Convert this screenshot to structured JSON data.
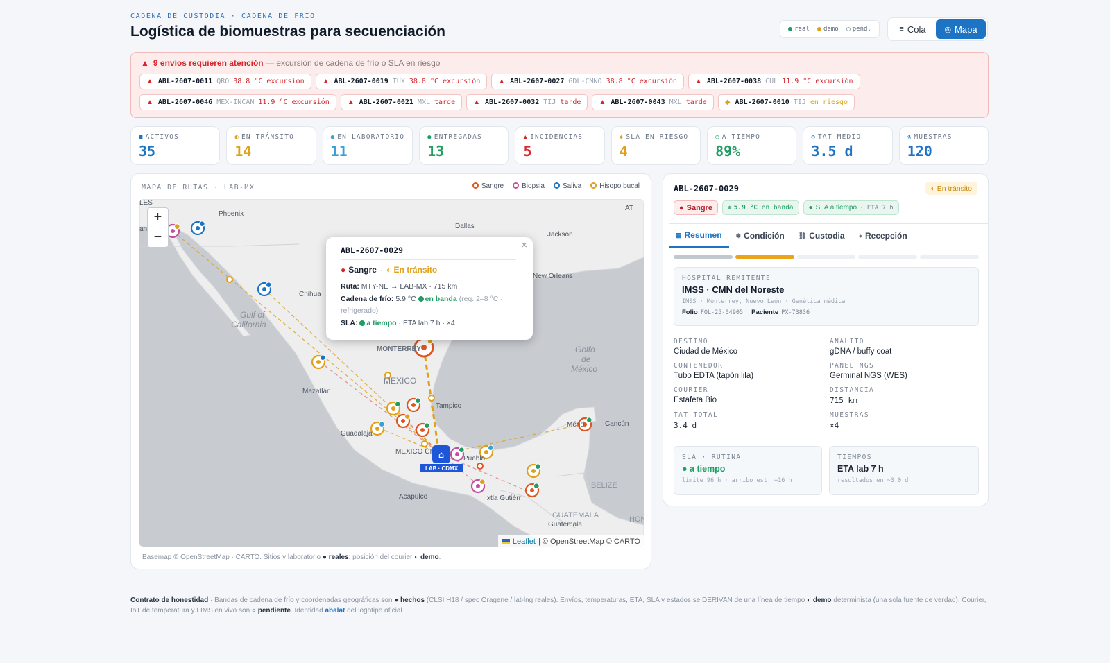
{
  "header": {
    "kicker": "CADENA DE CUSTODIA · CADENA DE FRÍO",
    "title": "Logística de biomuestras para secuenciación"
  },
  "legend_pill": {
    "real": "real",
    "demo": "demo",
    "pending": "pend."
  },
  "view_toggle": {
    "cola": "Cola",
    "mapa": "Mapa",
    "active": "Mapa"
  },
  "alerts": {
    "count_text": "9 envíos requieren atención",
    "desc": "— excursión de cadena de frío o SLA en riesgo",
    "chips": [
      {
        "id": "ABL-2607-0011",
        "route": "QRO",
        "status": "38.8 °C excursión",
        "level": "alert"
      },
      {
        "id": "ABL-2607-0019",
        "route": "TUX",
        "status": "38.8 °C excursión",
        "level": "alert"
      },
      {
        "id": "ABL-2607-0027",
        "route": "GDL-CMNO",
        "status": "38.8 °C excursión",
        "level": "alert"
      },
      {
        "id": "ABL-2607-0038",
        "route": "CUL",
        "status": "11.9 °C excursión",
        "level": "alert"
      },
      {
        "id": "ABL-2607-0046",
        "route": "MEX-INCAN",
        "status": "11.9 °C excursión",
        "level": "alert"
      },
      {
        "id": "ABL-2607-0021",
        "route": "MXL",
        "status": "tarde",
        "level": "alert"
      },
      {
        "id": "ABL-2607-0032",
        "route": "TIJ",
        "status": "tarde",
        "level": "alert"
      },
      {
        "id": "ABL-2607-0043",
        "route": "MXL",
        "status": "tarde",
        "level": "alert"
      },
      {
        "id": "ABL-2607-0010",
        "route": "TIJ",
        "status": "en riesgo",
        "level": "risk"
      }
    ]
  },
  "kpis": [
    {
      "label": "ACTIVOS",
      "value": "35",
      "color": "#1e74c4",
      "icon": "■"
    },
    {
      "label": "EN TRÁNSITO",
      "value": "14",
      "color": "#e0a019",
      "icon": "◐"
    },
    {
      "label": "EN LABORATORIO",
      "value": "11",
      "color": "#3aa0d8",
      "icon": "●"
    },
    {
      "label": "ENTREGADAS",
      "value": "13",
      "color": "#1f9d63",
      "icon": "●"
    },
    {
      "label": "INCIDENCIAS",
      "value": "5",
      "color": "#d6262b",
      "icon": "▲"
    },
    {
      "label": "SLA EN RIESGO",
      "value": "4",
      "color": "#e0a019",
      "icon": "◆"
    },
    {
      "label": "A TIEMPO",
      "value": "89%",
      "color": "#1f9d63",
      "icon": "◷"
    },
    {
      "label": "TAT MEDIO",
      "value": "3.5 d",
      "color": "#1e74c4",
      "icon": "◷"
    },
    {
      "label": "MUESTRAS",
      "value": "120",
      "color": "#1e74c4",
      "icon": "⚗"
    }
  ],
  "map": {
    "title": "MAPA DE RUTAS · LAB-MX",
    "legend": [
      {
        "label": "Sangre",
        "color": "#e0551f"
      },
      {
        "label": "Biopsia",
        "color": "#c44fa0"
      },
      {
        "label": "Saliva",
        "color": "#1e74c4"
      },
      {
        "label": "Hisopo bucal",
        "color": "#e0a019"
      }
    ],
    "place_labels": {
      "phoenix": "Phoenix",
      "dallas": "Dallas",
      "jackson": "Jackson",
      "new_orleans": "New Orleans",
      "chihua": "Chihua",
      "gulf_cal_1": "Gulf of",
      "gulf_cal_2": "California",
      "monterrey": "MONTERREY",
      "mexico": "MEXICO",
      "tampico": "Tampico",
      "mazatlan": "Mazatlán",
      "guadalajara": "Guadalaja",
      "mexico_city": "MEXICO CI",
      "puebla": "Puebla",
      "golfo_1": "Golfo",
      "golfo_2": "de",
      "golfo_3": "México",
      "merida": "Mérid",
      "cancun": "Cancún",
      "belize": "BELIZE",
      "acapulco": "Acapulco",
      "tuxtla": "xtla Gutiérr",
      "guatemala_country": "GUATEMALA",
      "guatemala_city": "Guatemala",
      "les": "LES",
      "at": "AT",
      "an": "an",
      "hon": "HONI"
    },
    "lab_label": "LAB · CDMX",
    "attribution_leaflet": "Leaflet",
    "attribution_rest": "| © OpenStreetMap © CARTO",
    "zoom_in": "+",
    "zoom_out": "−",
    "footnote_a": "Basemap © OpenStreetMap · CARTO. Sitios y laboratorio",
    "footnote_real": "● reales",
    "footnote_b": "; posición del courier",
    "footnote_demo": "◐ demo",
    "footnote_c": "."
  },
  "popup": {
    "id": "ABL-2607-0029",
    "type": "Sangre",
    "status": "En tránsito",
    "route_label": "Ruta:",
    "route": "MTY-NE → LAB-MX · 715 km",
    "cold_label": "Cadena de frío:",
    "cold_temp": "5.9 °C",
    "cold_band": "en banda",
    "cold_req": "(req. 2–8 °C · refrigerado)",
    "sla_label": "SLA:",
    "sla_status": "a tiempo",
    "sla_eta": "· ETA lab 7 h · ×4"
  },
  "detail": {
    "id": "ABL-2607-0029",
    "status": "En tránsito",
    "tag_type": "Sangre",
    "tag_temp": "5.9 °C",
    "tag_temp_band": "en banda",
    "tag_sla": "SLA a tiempo",
    "tag_sla_eta": "· ETA 7 h",
    "tabs": [
      {
        "label": "Resumen",
        "icon": "▦"
      },
      {
        "label": "Condición",
        "icon": "❅"
      },
      {
        "label": "Custodia",
        "icon": "⛓"
      },
      {
        "label": "Recepción",
        "icon": "◕"
      }
    ],
    "progress": [
      "done",
      "current",
      "pending",
      "pending",
      "pending"
    ],
    "hospital_label": "HOSPITAL REMITENTE",
    "hospital_name": "IMSS · CMN del Noreste",
    "hospital_sub": "IMSS · Monterrey, Nuevo León · Genética médica",
    "folio_label": "Folio",
    "folio": "FOL-25-04905",
    "patient_label": "Paciente",
    "patient": "PX-73836",
    "fields": [
      {
        "label": "DESTINO",
        "value": "Ciudad de México",
        "mono": false
      },
      {
        "label": "ANALITO",
        "value": "gDNA / buffy coat",
        "mono": false
      },
      {
        "label": "CONTENEDOR",
        "value": "Tubo EDTA (tapón lila)",
        "mono": false
      },
      {
        "label": "PANEL NGS",
        "value": "Germinal NGS (WES)",
        "mono": false
      },
      {
        "label": "COURIER",
        "value": "Estafeta Bio",
        "mono": false
      },
      {
        "label": "DISTANCIA",
        "value": "715 km",
        "mono": true
      },
      {
        "label": "TAT TOTAL",
        "value": "3.4 d",
        "mono": true
      },
      {
        "label": "MUESTRAS",
        "value": "×4",
        "mono": true
      }
    ],
    "sla_box": {
      "label": "SLA · RUTINA",
      "value": "● a tiempo",
      "sub": "límite 96 h · arribo est. +16 h"
    },
    "times_box": {
      "label": "TIEMPOS",
      "value": "ETA lab 7 h",
      "sub": "resultados en ~3.0 d"
    }
  },
  "footer": {
    "t1": "Contrato de honestidad",
    "t2": " · Bandas de cadena de frío y coordenadas geográficas son ",
    "t3": "● hechos",
    "t4": " (CLSI H18 / spec Oragene / lat-lng reales). Envíos, temperaturas, ETA, SLA y estados se DERIVAN de una línea de tiempo ",
    "t5": "◐ demo",
    "t6": " determinista (una sola fuente de verdad). Courier, IoT de temperatura y LIMS en vivo son ",
    "t7": "○ pendiente",
    "t8": ". Identidad ",
    "t9": "abalat",
    "t10": " del logotipo oficial."
  },
  "colors": {
    "accent": "#1e74c4",
    "alert": "#d6262b",
    "ok": "#1f9d63",
    "warn": "#e0a019"
  }
}
